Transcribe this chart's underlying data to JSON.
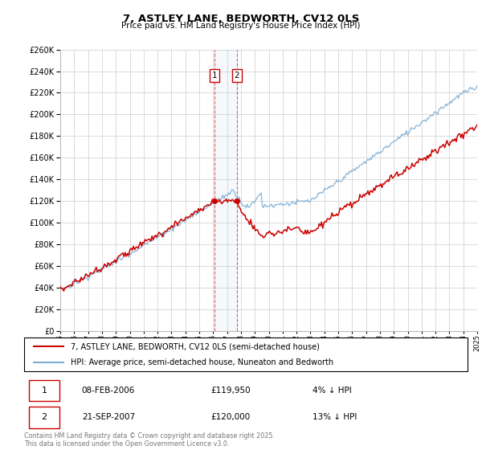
{
  "title": "7, ASTLEY LANE, BEDWORTH, CV12 0LS",
  "subtitle": "Price paid vs. HM Land Registry's House Price Index (HPI)",
  "legend_line1": "7, ASTLEY LANE, BEDWORTH, CV12 0LS (semi-detached house)",
  "legend_line2": "HPI: Average price, semi-detached house, Nuneaton and Bedworth",
  "transaction1_date": "08-FEB-2006",
  "transaction1_price": "£119,950",
  "transaction1_hpi": "4% ↓ HPI",
  "transaction2_date": "21-SEP-2007",
  "transaction2_price": "£120,000",
  "transaction2_hpi": "13% ↓ HPI",
  "copyright": "Contains HM Land Registry data © Crown copyright and database right 2025.\nThis data is licensed under the Open Government Licence v3.0.",
  "xmin": 1995,
  "xmax": 2025,
  "ymin": 0,
  "ymax": 260000,
  "ytick_step": 20000,
  "red_color": "#cc0000",
  "blue_color": "#7aadd4",
  "marker1_x": 2006.1,
  "marker2_x": 2007.72,
  "grid_color": "#cccccc"
}
